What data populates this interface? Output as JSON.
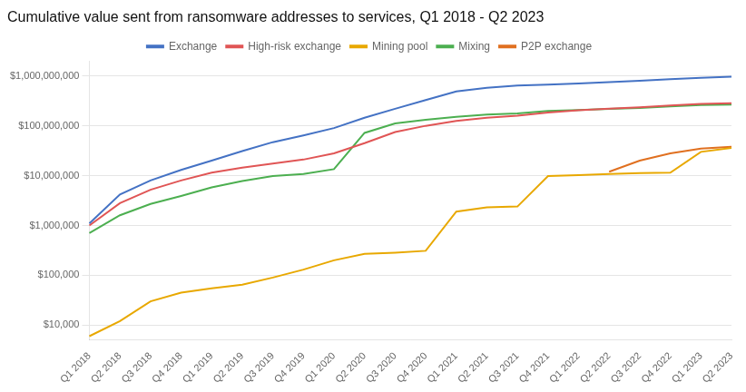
{
  "chart_data": {
    "type": "line",
    "title": "Cumulative value sent from ransomware addresses to services, Q1 2018 - Q2 2023",
    "categories": [
      "Q1 2018",
      "Q2 2018",
      "Q3 2018",
      "Q4 2018",
      "Q1 2019",
      "Q2 2019",
      "Q3 2019",
      "Q4 2019",
      "Q1 2020",
      "Q2 2020",
      "Q3 2020",
      "Q4 2020",
      "Q1 2021",
      "Q2 2021",
      "Q3 2021",
      "Q4 2021",
      "Q1 2022",
      "Q2 2022",
      "Q3 2022",
      "Q4 2022",
      "Q1 2023",
      "Q2 2023"
    ],
    "series": [
      {
        "name": "Exchange",
        "color": "#4472C4",
        "values": [
          1100000,
          4200000,
          8000000,
          13000000,
          20000000,
          31000000,
          47000000,
          64000000,
          90000000,
          145000000,
          220000000,
          330000000,
          490000000,
          580000000,
          640000000,
          670000000,
          710000000,
          750000000,
          800000000,
          860000000,
          920000000,
          970000000
        ]
      },
      {
        "name": "High-risk exchange",
        "color": "#E05555",
        "values": [
          1000000,
          2800000,
          5200000,
          8000000,
          11500000,
          14500000,
          17500000,
          21000000,
          28000000,
          45000000,
          75000000,
          100000000,
          125000000,
          145000000,
          160000000,
          185000000,
          205000000,
          220000000,
          235000000,
          255000000,
          275000000,
          285000000
        ]
      },
      {
        "name": "Mining pool",
        "color": "#E8A800",
        "values": [
          6000,
          12000,
          30000,
          45000,
          55000,
          65000,
          90000,
          130000,
          200000,
          270000,
          285000,
          310000,
          1900000,
          2300000,
          2400000,
          9800000,
          10200000,
          10800000,
          11200000,
          11500000,
          30000000,
          36000000
        ]
      },
      {
        "name": "Mixing",
        "color": "#4CAF50",
        "values": [
          700000,
          1600000,
          2700000,
          3900000,
          5800000,
          7800000,
          9800000,
          10800000,
          13500000,
          72000000,
          112000000,
          132000000,
          152000000,
          168000000,
          178000000,
          198000000,
          208000000,
          218000000,
          228000000,
          245000000,
          260000000,
          268000000
        ]
      },
      {
        "name": "P2P exchange",
        "color": "#E07020",
        "values": [
          null,
          null,
          null,
          null,
          null,
          null,
          null,
          null,
          null,
          null,
          null,
          null,
          null,
          null,
          null,
          null,
          null,
          12000000,
          20000000,
          28000000,
          35000000,
          38000000
        ]
      }
    ],
    "log": "y",
    "ylim": [
      5000,
      2000000000
    ],
    "yticks": [
      {
        "value": 10000,
        "label": "$10,000"
      },
      {
        "value": 100000,
        "label": "$100,000"
      },
      {
        "value": 1000000,
        "label": "$1,000,000"
      },
      {
        "value": 10000000,
        "label": "$10,000,000"
      },
      {
        "value": 100000000,
        "label": "$100,000,000"
      },
      {
        "value": 1000000000,
        "label": "$1,000,000,000"
      }
    ],
    "grid": true,
    "legend": "top"
  }
}
